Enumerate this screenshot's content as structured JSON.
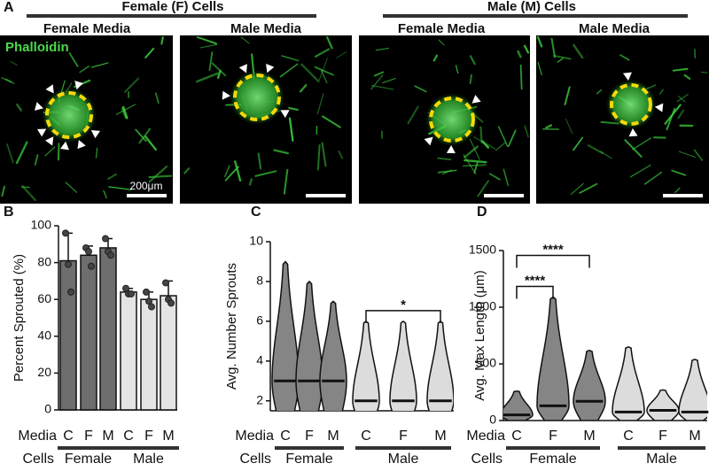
{
  "panel_a": {
    "label": "A",
    "groups": [
      {
        "title": "Female (F) Cells",
        "media": [
          "Female Media",
          "Male Media"
        ]
      },
      {
        "title": "Male (M) Cells",
        "media": [
          "Female Media",
          "Male Media"
        ]
      }
    ],
    "stain": "Phalloidin",
    "scale_bar": "200μm"
  },
  "chart_data": [
    {
      "panel": "B",
      "type": "bar",
      "ylabel": "Percent Sprouted (%)",
      "categories": [
        "C",
        "F",
        "M",
        "C",
        "F",
        "M"
      ],
      "row_labels": [
        "Media",
        "Cells"
      ],
      "groups": [
        "Female",
        "Male"
      ],
      "values": [
        81,
        84,
        88,
        64,
        60,
        62
      ],
      "errors": [
        15,
        5,
        5,
        2,
        4,
        8
      ],
      "points": [
        [
          96,
          79,
          64
        ],
        [
          88,
          86,
          78
        ],
        [
          93,
          86,
          84
        ],
        [
          66,
          63,
          63
        ],
        [
          64,
          59,
          56
        ],
        [
          69,
          60,
          58
        ]
      ],
      "colors": [
        "#6e6e6e",
        "#6e6e6e",
        "#6e6e6e",
        "#e4e4e4",
        "#e4e4e4",
        "#e4e4e4"
      ],
      "ylim": [
        0,
        100
      ],
      "yticks": [
        0,
        20,
        40,
        60,
        80,
        100
      ]
    },
    {
      "panel": "C",
      "type": "violin",
      "ylabel": "Avg. Number Sprouts",
      "categories": [
        "C",
        "F",
        "M",
        "C",
        "F",
        "M"
      ],
      "row_labels": [
        "Media",
        "Cells"
      ],
      "groups": [
        "Female",
        "Male"
      ],
      "medians": [
        3,
        3,
        3,
        2,
        2,
        2
      ],
      "min": [
        1,
        1,
        1,
        1,
        1,
        1
      ],
      "max": [
        9,
        8,
        7,
        6,
        6,
        6
      ],
      "colors": [
        "#858585",
        "#858585",
        "#858585",
        "#dcdcdc",
        "#dcdcdc",
        "#dcdcdc"
      ],
      "annotations": [
        {
          "label": "*",
          "from": 3,
          "to": 5
        }
      ],
      "ylim": [
        1.5,
        10
      ],
      "yticks": [
        2,
        4,
        6,
        8,
        10
      ]
    },
    {
      "panel": "D",
      "type": "violin",
      "ylabel": "Avg. Max Length (μm)",
      "categories": [
        "C",
        "F",
        "M",
        "C",
        "F",
        "M"
      ],
      "row_labels": [
        "Media",
        "Cells"
      ],
      "groups": [
        "Female",
        "Male"
      ],
      "medians": [
        50,
        130,
        170,
        75,
        90,
        75
      ],
      "min": [
        0,
        0,
        0,
        0,
        0,
        0
      ],
      "max": [
        260,
        1090,
        620,
        650,
        270,
        540
      ],
      "colors": [
        "#858585",
        "#858585",
        "#858585",
        "#dcdcdc",
        "#dcdcdc",
        "#dcdcdc"
      ],
      "annotations": [
        {
          "label": "****",
          "from": 0,
          "to": 1
        },
        {
          "label": "****",
          "from": 0,
          "to": 2
        }
      ],
      "ylim": [
        0,
        1500
      ],
      "yticks": [
        0,
        500,
        1000,
        1500
      ]
    }
  ]
}
